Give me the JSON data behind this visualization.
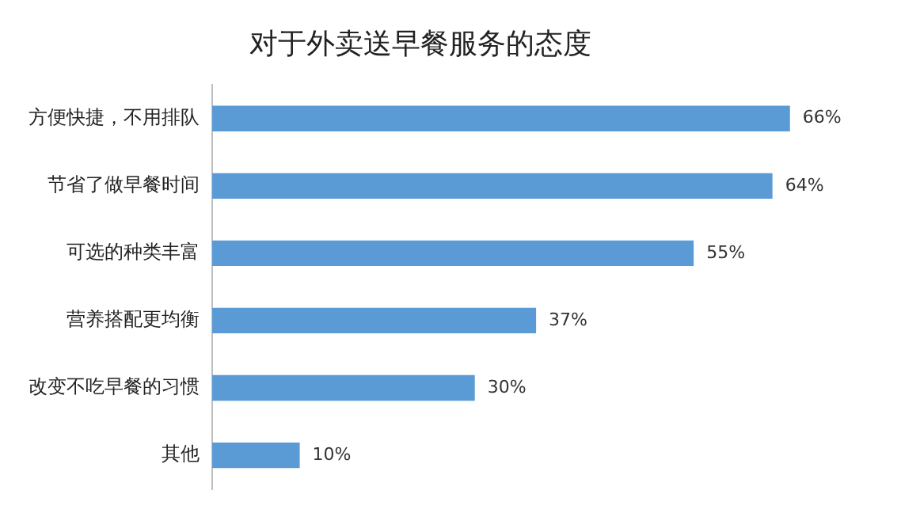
{
  "chart_data": {
    "type": "bar",
    "orientation": "horizontal",
    "title": "对于外卖送早餐服务的态度",
    "categories": [
      "方便快捷，不用排队",
      "节省了做早餐时间",
      "可选的种类丰富",
      "营养搭配更均衡",
      "改变不吃早餐的习惯",
      "其他"
    ],
    "values": [
      66,
      64,
      55,
      37,
      30,
      10
    ],
    "value_labels": [
      "66%",
      "64%",
      "55%",
      "37%",
      "30%",
      "10%"
    ],
    "color": "#5b9bd5",
    "tick_labels": "y",
    "legend": false
  }
}
